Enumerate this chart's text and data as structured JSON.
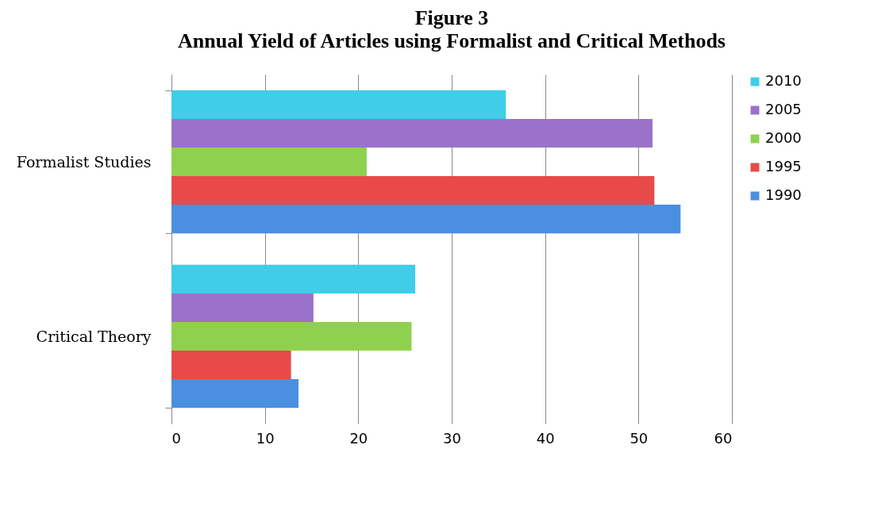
{
  "chart_data": {
    "type": "bar",
    "orientation": "horizontal",
    "title": "Figure 3",
    "subtitle": "Annual Yield of Articles using Formalist and Critical Methods",
    "categories": [
      "Formalist Studies",
      "Critical Theory"
    ],
    "series": [
      {
        "name": "2010",
        "color": "#3fcde8",
        "values": [
          35.8,
          26.1
        ]
      },
      {
        "name": "2005",
        "color": "#9b72c9",
        "values": [
          51.5,
          15.2
        ]
      },
      {
        "name": "2000",
        "color": "#8fd14f",
        "values": [
          20.9,
          25.7
        ]
      },
      {
        "name": "1995",
        "color": "#e84a4a",
        "values": [
          51.7,
          12.8
        ]
      },
      {
        "name": "1990",
        "color": "#4a8fe0",
        "values": [
          54.5,
          13.6
        ]
      }
    ],
    "xlim": [
      0,
      60
    ],
    "xticks": [
      0,
      10,
      20,
      30,
      40,
      50,
      60
    ],
    "grid": "x",
    "legend": "right"
  }
}
